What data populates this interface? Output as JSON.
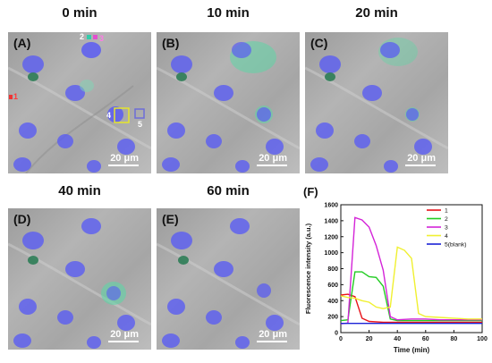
{
  "titles": {
    "t0": "0 min",
    "t10": "10 min",
    "t20": "20 min",
    "t40": "40 min",
    "t60": "60 min"
  },
  "panels": {
    "A": "(A)",
    "B": "(B)",
    "C": "(C)",
    "D": "(D)",
    "E": "(E)",
    "F": "(F)"
  },
  "scale_bar": "20 μm",
  "roi_labels": [
    "1",
    "2",
    "3",
    "4",
    "5"
  ],
  "colors": {
    "nucleus": "#5a5cf2",
    "probe_green": "#5fd6a6",
    "roi4_box": "#e6e62a",
    "roi5_box": "#6d6dd8"
  },
  "chart_data": {
    "type": "line",
    "title": "",
    "xlabel": "Time (min)",
    "ylabel": "Fluorescence intensity (a.u.)",
    "xlim": [
      0,
      100
    ],
    "ylim": [
      0,
      1600
    ],
    "xticks": [
      0,
      20,
      40,
      60,
      80,
      100
    ],
    "yticks": [
      0,
      200,
      400,
      600,
      800,
      1000,
      1200,
      1400,
      1600
    ],
    "legend_position": "top-right",
    "series": [
      {
        "name": "1",
        "color": "#e8131a",
        "x": [
          0,
          5,
          10,
          15,
          20,
          30,
          40,
          50,
          60,
          70,
          80,
          90,
          100
        ],
        "y": [
          470,
          480,
          450,
          180,
          140,
          130,
          130,
          130,
          130,
          130,
          130,
          130,
          130
        ]
      },
      {
        "name": "2",
        "color": "#22cc22",
        "x": [
          0,
          5,
          10,
          15,
          20,
          25,
          30,
          35,
          40,
          50,
          60,
          70,
          80,
          90,
          100
        ],
        "y": [
          150,
          160,
          760,
          760,
          700,
          690,
          580,
          170,
          150,
          150,
          150,
          150,
          150,
          150,
          150
        ]
      },
      {
        "name": "3",
        "color": "#d424d8",
        "x": [
          0,
          5,
          10,
          15,
          20,
          25,
          30,
          35,
          40,
          50,
          60,
          70,
          80,
          90,
          100
        ],
        "y": [
          110,
          120,
          1440,
          1410,
          1320,
          1090,
          780,
          200,
          160,
          170,
          170,
          160,
          160,
          160,
          160
        ]
      },
      {
        "name": "4",
        "color": "#f0f030",
        "x": [
          0,
          5,
          10,
          15,
          20,
          25,
          30,
          35,
          40,
          45,
          50,
          55,
          60,
          70,
          80,
          90,
          100
        ],
        "y": [
          460,
          440,
          430,
          400,
          380,
          320,
          300,
          320,
          1070,
          1030,
          930,
          240,
          200,
          190,
          180,
          170,
          170
        ]
      },
      {
        "name": "5(blank)",
        "color": "#1a22d6",
        "x": [
          0,
          20,
          40,
          60,
          80,
          100
        ],
        "y": [
          115,
          115,
          115,
          115,
          115,
          115
        ]
      }
    ]
  }
}
